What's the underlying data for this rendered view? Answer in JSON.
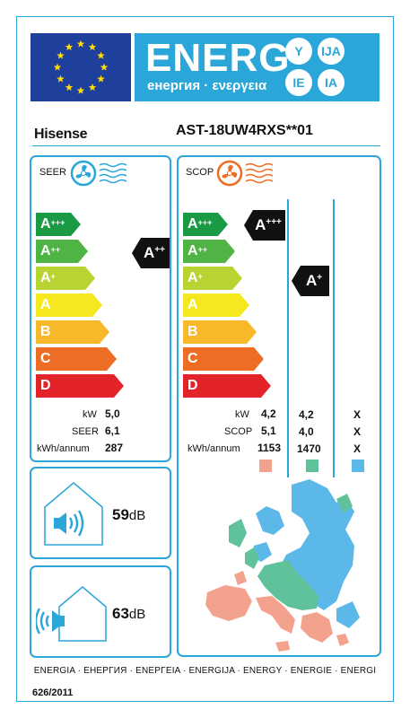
{
  "header": {
    "energy_word": "ENERG",
    "subtitle": "енергия · ενεργεια",
    "lang_codes": [
      "Y",
      "IJA",
      "IE",
      "IA"
    ]
  },
  "brand": "Hisense",
  "model": "AST-18UW4RXS**01",
  "seer_panel": {
    "title": "SEER",
    "classes": [
      "A+++",
      "A++",
      "A+",
      "A",
      "B",
      "C",
      "D"
    ],
    "rating": "A++",
    "kw_label": "kW",
    "kw_value": "5,0",
    "seer_label": "SEER",
    "seer_value": "6,1",
    "annum_label": "kWh/annum",
    "annum_value": "287"
  },
  "scop_panel": {
    "title": "SCOP",
    "classes": [
      "A+++",
      "A++",
      "A+",
      "A",
      "B",
      "C",
      "D"
    ],
    "rating_warm": "A+++",
    "rating_average": "A+",
    "kw_label": "kW",
    "kw_values": [
      "4,2",
      "4,2",
      "X"
    ],
    "scop_label": "SCOP",
    "scop_values": [
      "5,1",
      "4,0",
      "X"
    ],
    "annum_label": "kWh/annum",
    "annum_values": [
      "1153",
      "1470",
      "X"
    ],
    "zone_colors": [
      "#f3a28d",
      "#5fc29a",
      "#5cb8e8"
    ]
  },
  "noise_indoor": {
    "value": "59",
    "unit": "dB"
  },
  "noise_outdoor": {
    "value": "63",
    "unit": "dB"
  },
  "footer": {
    "languages": "ENERGIA · ЕНЕРГИЯ · ΕΝΕΡΓΕΙΑ · ENERGIJA · ENERGY · ENERGIE · ENERGI",
    "regulation": "626/2011"
  },
  "colors": {
    "accent": "#2aa7d8",
    "eu_blue": "#1e3f9c",
    "class_colors": [
      "#1a9a45",
      "#4fb443",
      "#b8d433",
      "#f6e81e",
      "#f7b92a",
      "#ec6d23",
      "#e3232a"
    ]
  }
}
